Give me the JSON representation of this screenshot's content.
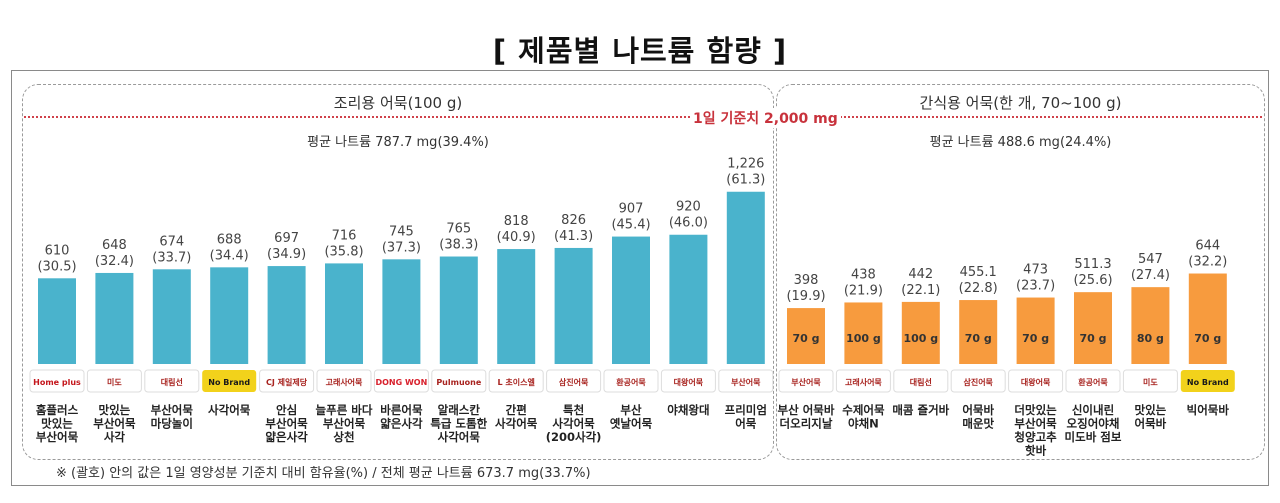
{
  "page_title": "[ 제품별 나트륨 함량 ]",
  "reference_line_label": "1일 기준치 2,000 mg",
  "footnote": "※ (괄호) 안의 값은 1일 영양성분 기준치 대비 함유율(%) / 전체 평균 나트륨 673.7 mg(33.7%)",
  "colors": {
    "cooking_bar": "#4ab3cc",
    "snack_bar": "#f79b3e",
    "reference_line": "#d0414a"
  },
  "chart_data": [
    {
      "type": "bar",
      "title": "조리용 어묵(100 g)",
      "average_label": "평균 나트륨 787.7 mg(39.4%)",
      "y_unit": "mg",
      "ylim": [
        0,
        2000
      ],
      "categories": [
        "홈플러스 맛있는 부산어묵",
        "맛있는 부산어묵 사각",
        "부산어묵 마당놀이",
        "사각어묵",
        "안심 부산어묵 얇은사각",
        "늘푸른 바다 부산어묵 상천",
        "바른어묵 얇은사각",
        "알래스칸 특급 도톰한 사각어묵",
        "간편 사각어묵",
        "특천 사각어묵 (200사각)",
        "부산 옛날어묵",
        "야채왕대",
        "프리미엄 어묵"
      ],
      "values": [
        610,
        648,
        674,
        688,
        697,
        716,
        745,
        765,
        818,
        826,
        907,
        920,
        1226
      ],
      "value_labels": [
        "610",
        "648",
        "674",
        "688",
        "697",
        "716",
        "745",
        "765",
        "818",
        "826",
        "907",
        "920",
        "1,226"
      ],
      "pct_labels": [
        "(30.5)",
        "(32.4)",
        "(33.7)",
        "(34.4)",
        "(34.9)",
        "(35.8)",
        "(37.3)",
        "(38.3)",
        "(40.9)",
        "(41.3)",
        "(45.4)",
        "(46.0)",
        "(61.3)"
      ],
      "brand_logos": [
        "Home plus",
        "미도",
        "대림선",
        "No Brand",
        "CJ 제일제당",
        "고래사어묵",
        "DONG WON",
        "Pulmuone",
        "L 초이스엘",
        "삼진어묵",
        "환공어묵",
        "대왕어묵",
        "부산어묵"
      ]
    },
    {
      "type": "bar",
      "title": "간식용 어묵(한 개, 70~100 g)",
      "average_label": "평균 나트륨 488.6 mg(24.4%)",
      "y_unit": "mg",
      "ylim": [
        0,
        2000
      ],
      "categories": [
        "부산 어묵바 더오리지날",
        "수제어묵 야채N",
        "매콤 즐거바",
        "어묵바 매운맛",
        "더맛있는 부산어묵 청양고추 핫바",
        "신이내린 오징어야채 미도바 점보",
        "맛있는 어묵바",
        "빅어묵바"
      ],
      "values": [
        398,
        438,
        442,
        455.1,
        473,
        511.3,
        547,
        644
      ],
      "value_labels": [
        "398",
        "438",
        "442",
        "455.1",
        "473",
        "511.3",
        "547",
        "644"
      ],
      "pct_labels": [
        "(19.9)",
        "(21.9)",
        "(22.1)",
        "(22.8)",
        "(23.7)",
        "(25.6)",
        "(27.4)",
        "(32.2)"
      ],
      "weights": [
        "70 g",
        "100 g",
        "100 g",
        "70 g",
        "70 g",
        "70 g",
        "80 g",
        "70 g"
      ],
      "brand_logos": [
        "부산어묵",
        "고래사어묵",
        "대림선",
        "삼진어묵",
        "대왕어묵",
        "환공어묵",
        "미도",
        "No Brand"
      ]
    }
  ]
}
